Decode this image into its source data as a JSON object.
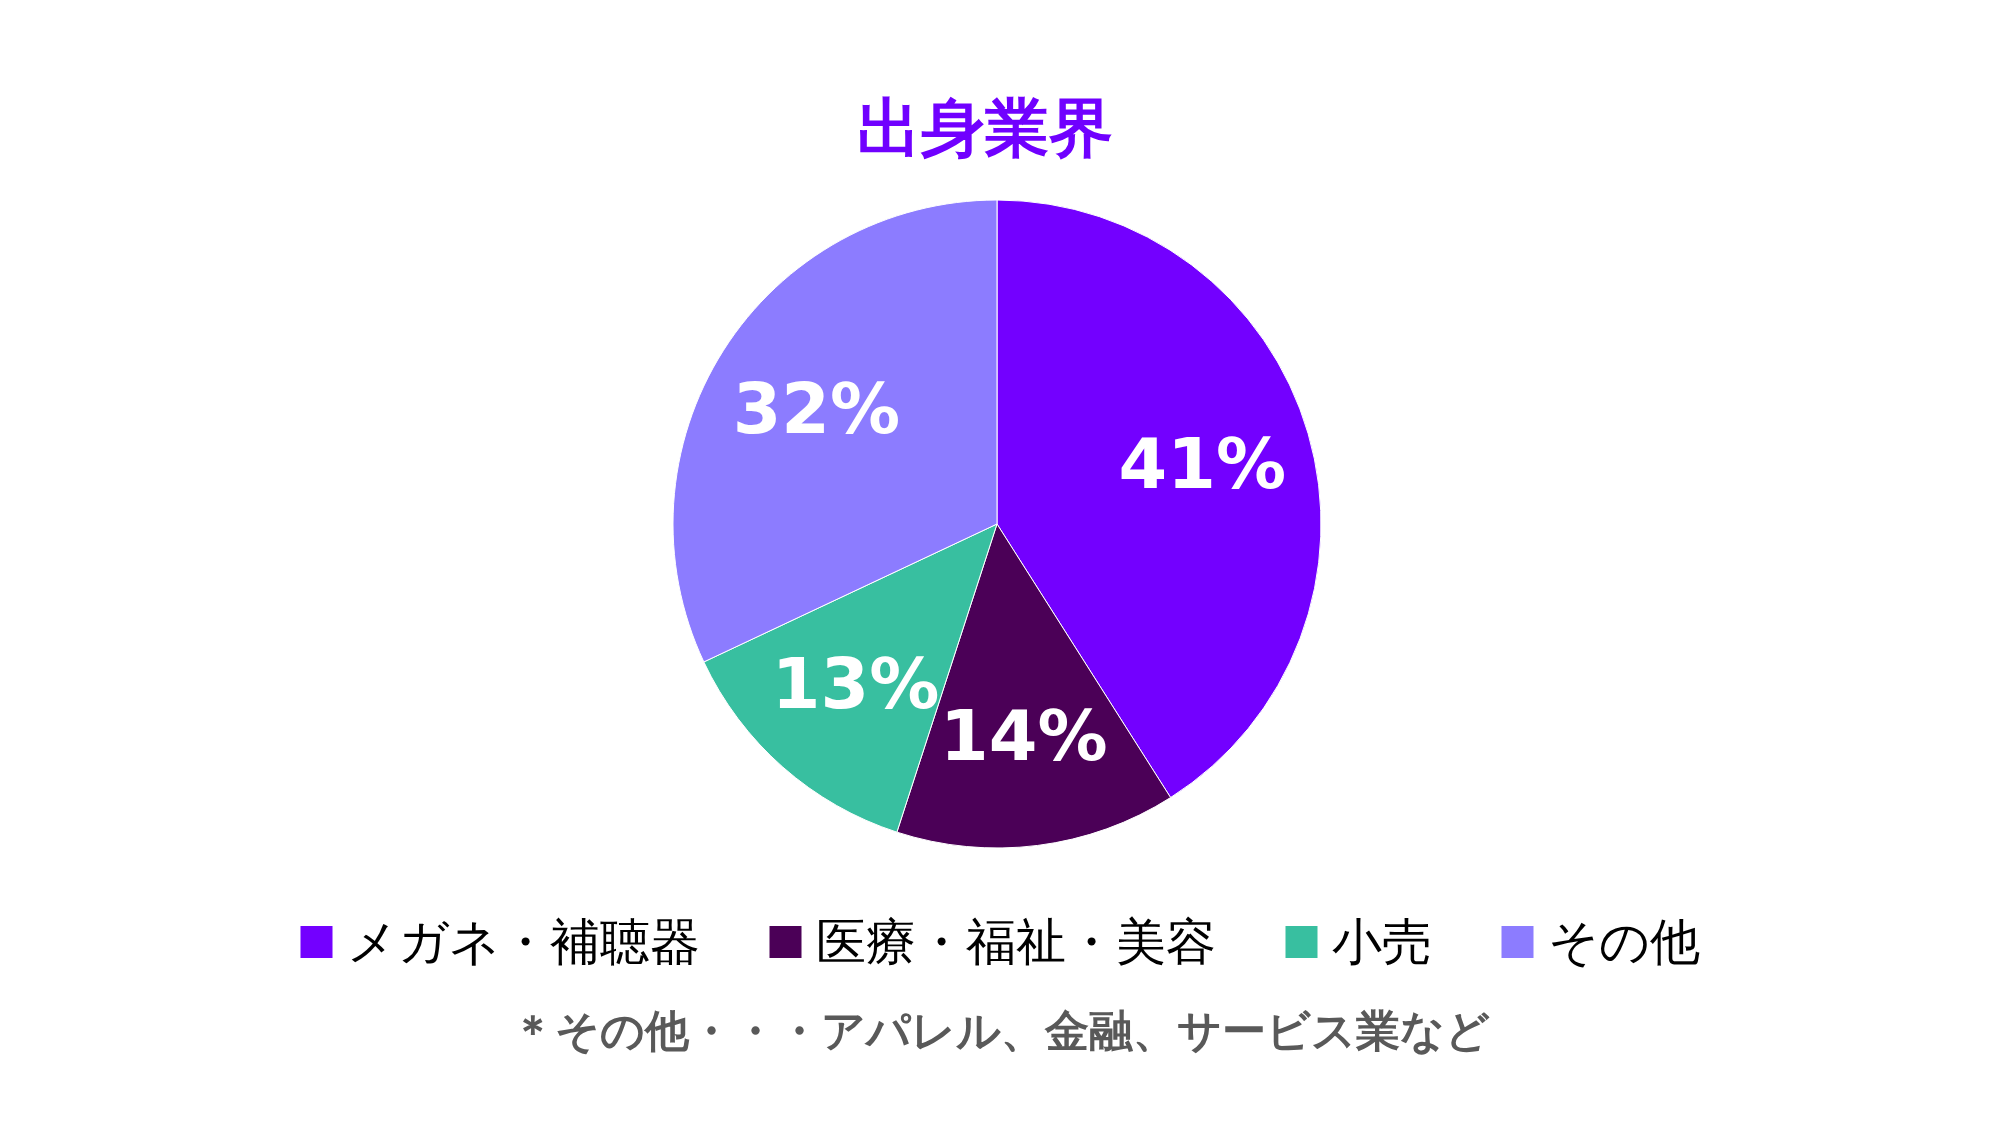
{
  "chart_data": {
    "type": "pie",
    "title": "出身業界",
    "categories": [
      "メガネ・補聴器",
      "医療・福祉・美容",
      "小売",
      "その他"
    ],
    "values": [
      41,
      14,
      13,
      32
    ],
    "value_labels": [
      "41%",
      "14%",
      "13%",
      "32%"
    ],
    "colors": [
      "#7300ff",
      "#4b0057",
      "#38bfa0",
      "#8c7cff"
    ],
    "legend": "bottom",
    "annotations": [
      "＊その他・・・アパレル、金融、サービス業など"
    ]
  }
}
